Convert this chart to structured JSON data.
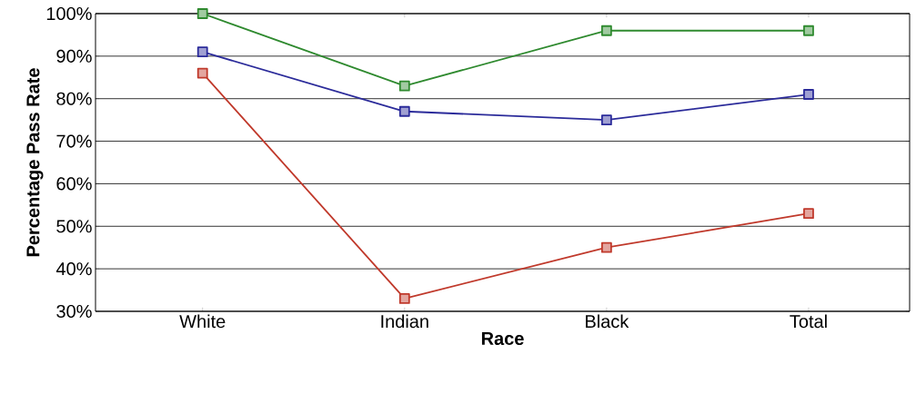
{
  "chart_data": {
    "type": "line",
    "xlabel": "Race",
    "ylabel": "Percentage Pass Rate",
    "categories": [
      "White",
      "Indian",
      "Black",
      "Total"
    ],
    "series": [
      {
        "color": "#2f8a2f",
        "values": [
          100,
          83,
          96,
          96
        ]
      },
      {
        "color": "#2b2b9a",
        "values": [
          91,
          77,
          75,
          81
        ]
      },
      {
        "color": "#c0392b",
        "values": [
          86,
          33,
          45,
          53
        ]
      }
    ],
    "ylim": [
      30,
      100
    ],
    "yticks": [
      {
        "value": 30,
        "label": "30%"
      },
      {
        "value": 40,
        "label": "40%"
      },
      {
        "value": 50,
        "label": "50%"
      },
      {
        "value": 60,
        "label": "60%"
      },
      {
        "value": 70,
        "label": "70%"
      },
      {
        "value": 80,
        "label": "80%"
      },
      {
        "value": 90,
        "label": "90%"
      },
      {
        "value": 100,
        "label": "100%"
      }
    ],
    "grid": "y",
    "marker": "square",
    "line_style": "solid"
  }
}
